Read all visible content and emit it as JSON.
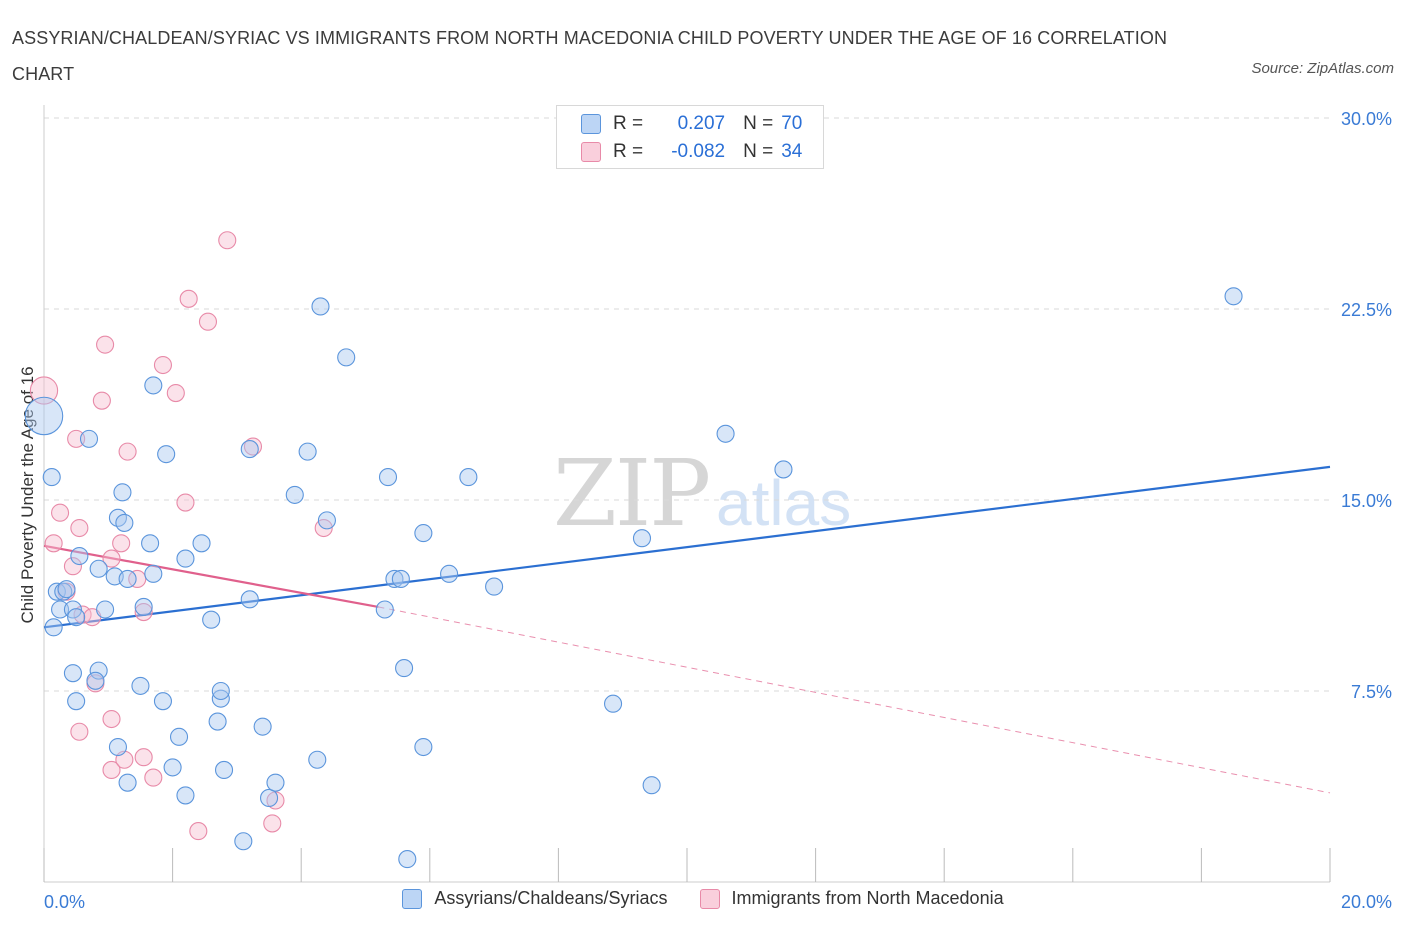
{
  "title": "ASSYRIAN/CHALDEAN/SYRIAC VS IMMIGRANTS FROM NORTH MACEDONIA CHILD POVERTY UNDER THE AGE OF 16 CORRELATION CHART",
  "source": "Source: ZipAtlas.com",
  "watermark": {
    "zip": "ZIP",
    "atlas": "atlas"
  },
  "legend": {
    "rows": [
      {
        "r_label": "R =",
        "r_value": "0.207",
        "n_label": "N =",
        "n_value": "70"
      },
      {
        "r_label": "R =",
        "r_value": "-0.082",
        "n_label": "N =",
        "n_value": "34"
      }
    ]
  },
  "bottom_legend": {
    "series1": "Assyrians/Chaldeans/Syriacs",
    "series2": "Immigrants from North Macedonia"
  },
  "colors": {
    "blue_fill": "#a9c8f0",
    "blue_stroke": "#5b95dc",
    "blue_line": "#2b6fd1",
    "pink_fill": "#f6bfd0",
    "pink_stroke": "#e88aa8",
    "pink_line": "#e0608c",
    "grid": "#d9d9d9",
    "axis_text": "#3a7bd5"
  },
  "chart_data": {
    "type": "scatter",
    "title": "ASSYRIAN/CHALDEAN/SYRIAC VS IMMIGRANTS FROM NORTH MACEDONIA CHILD POVERTY UNDER THE AGE OF 16 CORRELATION CHART",
    "xlabel": "",
    "ylabel": "Child Poverty Under the Age of 16",
    "xlim": [
      0,
      20
    ],
    "ylim": [
      0,
      30
    ],
    "x_tick_labels": [
      "0.0%",
      "20.0%"
    ],
    "y_ticks": [
      7.5,
      15.0,
      22.5,
      30.0
    ],
    "y_tick_labels": [
      "7.5%",
      "15.0%",
      "22.5%",
      "30.0%"
    ],
    "grid": true,
    "series": [
      {
        "name": "Assyrians/Chaldeans/Syriacs",
        "color": "blue",
        "R": 0.207,
        "N": 70,
        "trend": {
          "x0": 0,
          "y0": 10.0,
          "x1": 20,
          "y1": 16.3
        },
        "points": [
          [
            0.0,
            18.3,
            2.2
          ],
          [
            0.12,
            15.9,
            1
          ],
          [
            0.15,
            10.0,
            1
          ],
          [
            0.2,
            11.4,
            1
          ],
          [
            0.25,
            10.7,
            1
          ],
          [
            0.3,
            11.4,
            1
          ],
          [
            0.35,
            11.5,
            1
          ],
          [
            0.45,
            10.7,
            1
          ],
          [
            0.5,
            10.4,
            1
          ],
          [
            0.55,
            12.8,
            1
          ],
          [
            0.7,
            17.4,
            1
          ],
          [
            0.85,
            12.3,
            1
          ],
          [
            0.95,
            10.7,
            1
          ],
          [
            1.1,
            12.0,
            1
          ],
          [
            1.15,
            14.3,
            1
          ],
          [
            1.22,
            15.3,
            1
          ],
          [
            1.25,
            14.1,
            1
          ],
          [
            1.3,
            11.9,
            1
          ],
          [
            1.55,
            10.8,
            1
          ],
          [
            1.65,
            13.3,
            1
          ],
          [
            1.7,
            12.1,
            1
          ],
          [
            1.7,
            19.5,
            1
          ],
          [
            1.9,
            16.8,
            1
          ],
          [
            2.2,
            12.7,
            1
          ],
          [
            2.45,
            13.3,
            1
          ],
          [
            2.6,
            10.3,
            1
          ],
          [
            3.2,
            11.1,
            1
          ],
          [
            3.2,
            17.0,
            1
          ],
          [
            3.9,
            15.2,
            1
          ],
          [
            4.1,
            16.9,
            1
          ],
          [
            4.4,
            14.2,
            1
          ],
          [
            4.3,
            22.6,
            1
          ],
          [
            4.7,
            20.6,
            1
          ],
          [
            5.35,
            15.9,
            1
          ],
          [
            5.45,
            11.9,
            1
          ],
          [
            5.55,
            11.9,
            1
          ],
          [
            5.9,
            13.7,
            1
          ],
          [
            6.3,
            12.1,
            1
          ],
          [
            6.6,
            15.9,
            1
          ],
          [
            7.0,
            11.6,
            1
          ],
          [
            9.3,
            13.5,
            1
          ],
          [
            10.6,
            17.6,
            1
          ],
          [
            11.5,
            16.2,
            1
          ],
          [
            18.5,
            23.0,
            1
          ],
          [
            0.45,
            8.2,
            1
          ],
          [
            0.5,
            7.1,
            1
          ],
          [
            0.85,
            8.3,
            1
          ],
          [
            0.8,
            7.9,
            1
          ],
          [
            1.15,
            5.3,
            1
          ],
          [
            1.5,
            7.7,
            1
          ],
          [
            1.85,
            7.1,
            1
          ],
          [
            2.0,
            4.5,
            1
          ],
          [
            2.1,
            5.7,
            1
          ],
          [
            2.2,
            3.4,
            1
          ],
          [
            2.7,
            6.3,
            1
          ],
          [
            2.75,
            7.2,
            1
          ],
          [
            2.8,
            4.4,
            1
          ],
          [
            2.75,
            7.5,
            1
          ],
          [
            3.1,
            1.6,
            1
          ],
          [
            3.4,
            6.1,
            1
          ],
          [
            3.5,
            3.3,
            1
          ],
          [
            3.6,
            3.9,
            1
          ],
          [
            4.25,
            4.8,
            1
          ],
          [
            5.6,
            8.4,
            1
          ],
          [
            5.65,
            0.9,
            1
          ],
          [
            5.9,
            5.3,
            1
          ],
          [
            8.85,
            7.0,
            1
          ],
          [
            9.45,
            3.8,
            1
          ],
          [
            1.3,
            3.9,
            1
          ],
          [
            5.3,
            10.7,
            1
          ]
        ]
      },
      {
        "name": "Immigrants from North Macedonia",
        "color": "pink",
        "R": -0.082,
        "N": 34,
        "trend": {
          "x0": 0,
          "y0": 13.2,
          "x1": 5.2,
          "y1": 10.8
        },
        "trend_dashed": {
          "x0": 5.2,
          "y0": 10.8,
          "x1": 20,
          "y1": 3.5
        },
        "points": [
          [
            0.0,
            19.3,
            1.6
          ],
          [
            0.15,
            13.3,
            1
          ],
          [
            0.25,
            14.5,
            1
          ],
          [
            0.35,
            11.4,
            1
          ],
          [
            0.45,
            12.4,
            1
          ],
          [
            0.5,
            17.4,
            1
          ],
          [
            0.6,
            10.5,
            1
          ],
          [
            0.55,
            13.9,
            1
          ],
          [
            0.75,
            10.4,
            1
          ],
          [
            0.9,
            18.9,
            1
          ],
          [
            0.95,
            21.1,
            1
          ],
          [
            1.05,
            12.7,
            1
          ],
          [
            1.2,
            13.3,
            1
          ],
          [
            1.3,
            16.9,
            1
          ],
          [
            1.45,
            11.9,
            1
          ],
          [
            1.55,
            10.6,
            1
          ],
          [
            1.85,
            20.3,
            1
          ],
          [
            2.05,
            19.2,
            1
          ],
          [
            2.2,
            14.9,
            1
          ],
          [
            2.25,
            22.9,
            1
          ],
          [
            2.55,
            22.0,
            1
          ],
          [
            2.85,
            25.2,
            1
          ],
          [
            3.25,
            17.1,
            1
          ],
          [
            4.35,
            13.9,
            1
          ],
          [
            0.55,
            5.9,
            1
          ],
          [
            0.8,
            7.8,
            1
          ],
          [
            1.05,
            6.4,
            1
          ],
          [
            1.05,
            4.4,
            1
          ],
          [
            1.25,
            4.8,
            1
          ],
          [
            1.55,
            4.9,
            1
          ],
          [
            1.7,
            4.1,
            1
          ],
          [
            2.4,
            2.0,
            1
          ],
          [
            3.55,
            2.3,
            1
          ],
          [
            3.6,
            3.2,
            1
          ]
        ]
      }
    ]
  }
}
